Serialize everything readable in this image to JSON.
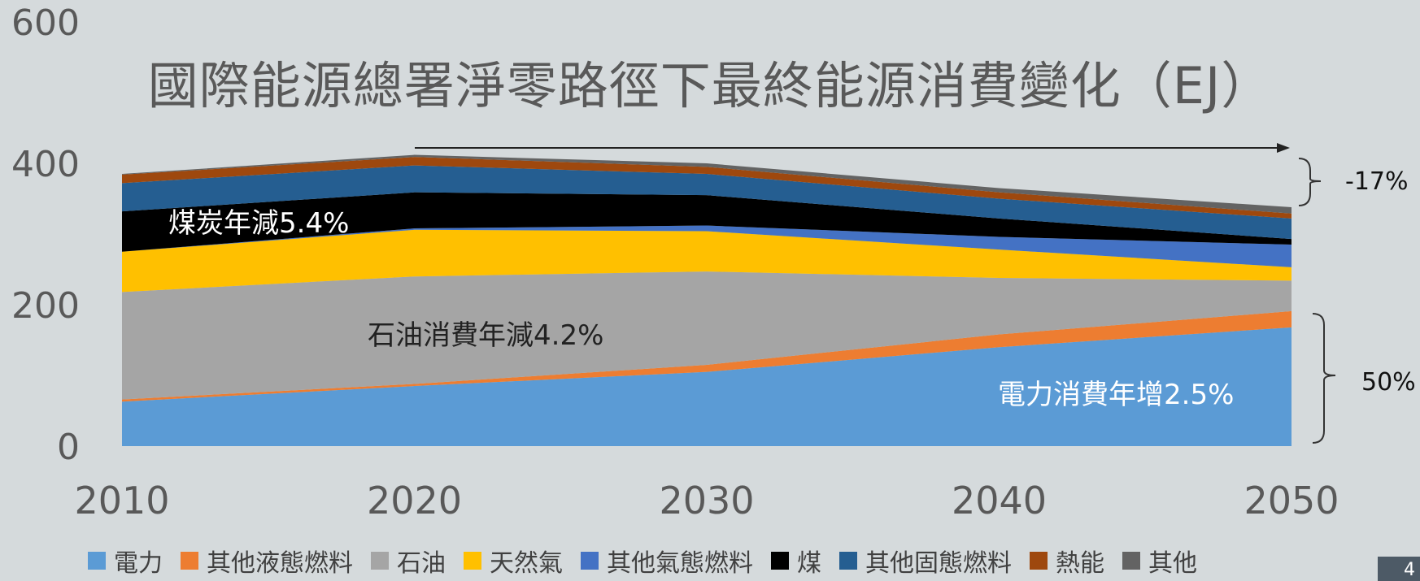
{
  "title": "國際能源總署淨零路徑下最終能源消費變化（EJ）",
  "page_number": "4",
  "annotations": {
    "coal": "煤炭年減5.4%",
    "oil": "石油消費年減4.2%",
    "electricity": "電力消費年增2.5%",
    "total_change": "-17%",
    "electricity_share": "50%"
  },
  "chart_data": {
    "type": "area",
    "stacked": true,
    "title": "國際能源總署淨零路徑下最終能源消費變化（EJ）",
    "x": [
      2010,
      2020,
      2030,
      2040,
      2050
    ],
    "x_ticks": [
      "2010",
      "2020",
      "2030",
      "2040",
      "2050"
    ],
    "y_ticks": [
      "0",
      "200",
      "400",
      "600"
    ],
    "ylim": [
      0,
      600
    ],
    "grid": false,
    "legend_position": "bottom",
    "series": [
      {
        "name": "電力",
        "color": "#5b9bd5",
        "values": [
          63,
          85,
          105,
          140,
          168
        ]
      },
      {
        "name": "其他液態燃料",
        "color": "#ed7d31",
        "values": [
          3,
          3,
          10,
          18,
          23
        ]
      },
      {
        "name": "石油",
        "color": "#a5a5a5",
        "values": [
          152,
          152,
          132,
          80,
          43
        ]
      },
      {
        "name": "天然氣",
        "color": "#ffc000",
        "values": [
          57,
          66,
          57,
          40,
          19
        ]
      },
      {
        "name": "其他氣態燃料",
        "color": "#4472c4",
        "values": [
          0,
          2,
          8,
          18,
          32
        ]
      },
      {
        "name": "煤",
        "color": "#000000",
        "values": [
          57,
          51,
          43,
          26,
          8
        ]
      },
      {
        "name": "其他固態燃料",
        "color": "#255e91",
        "values": [
          40,
          38,
          30,
          28,
          29
        ]
      },
      {
        "name": "熱能",
        "color": "#9e480e",
        "values": [
          12,
          12,
          10,
          9,
          7
        ]
      },
      {
        "name": "其他",
        "color": "#636363",
        "values": [
          1,
          3,
          5,
          6,
          9
        ]
      }
    ]
  }
}
